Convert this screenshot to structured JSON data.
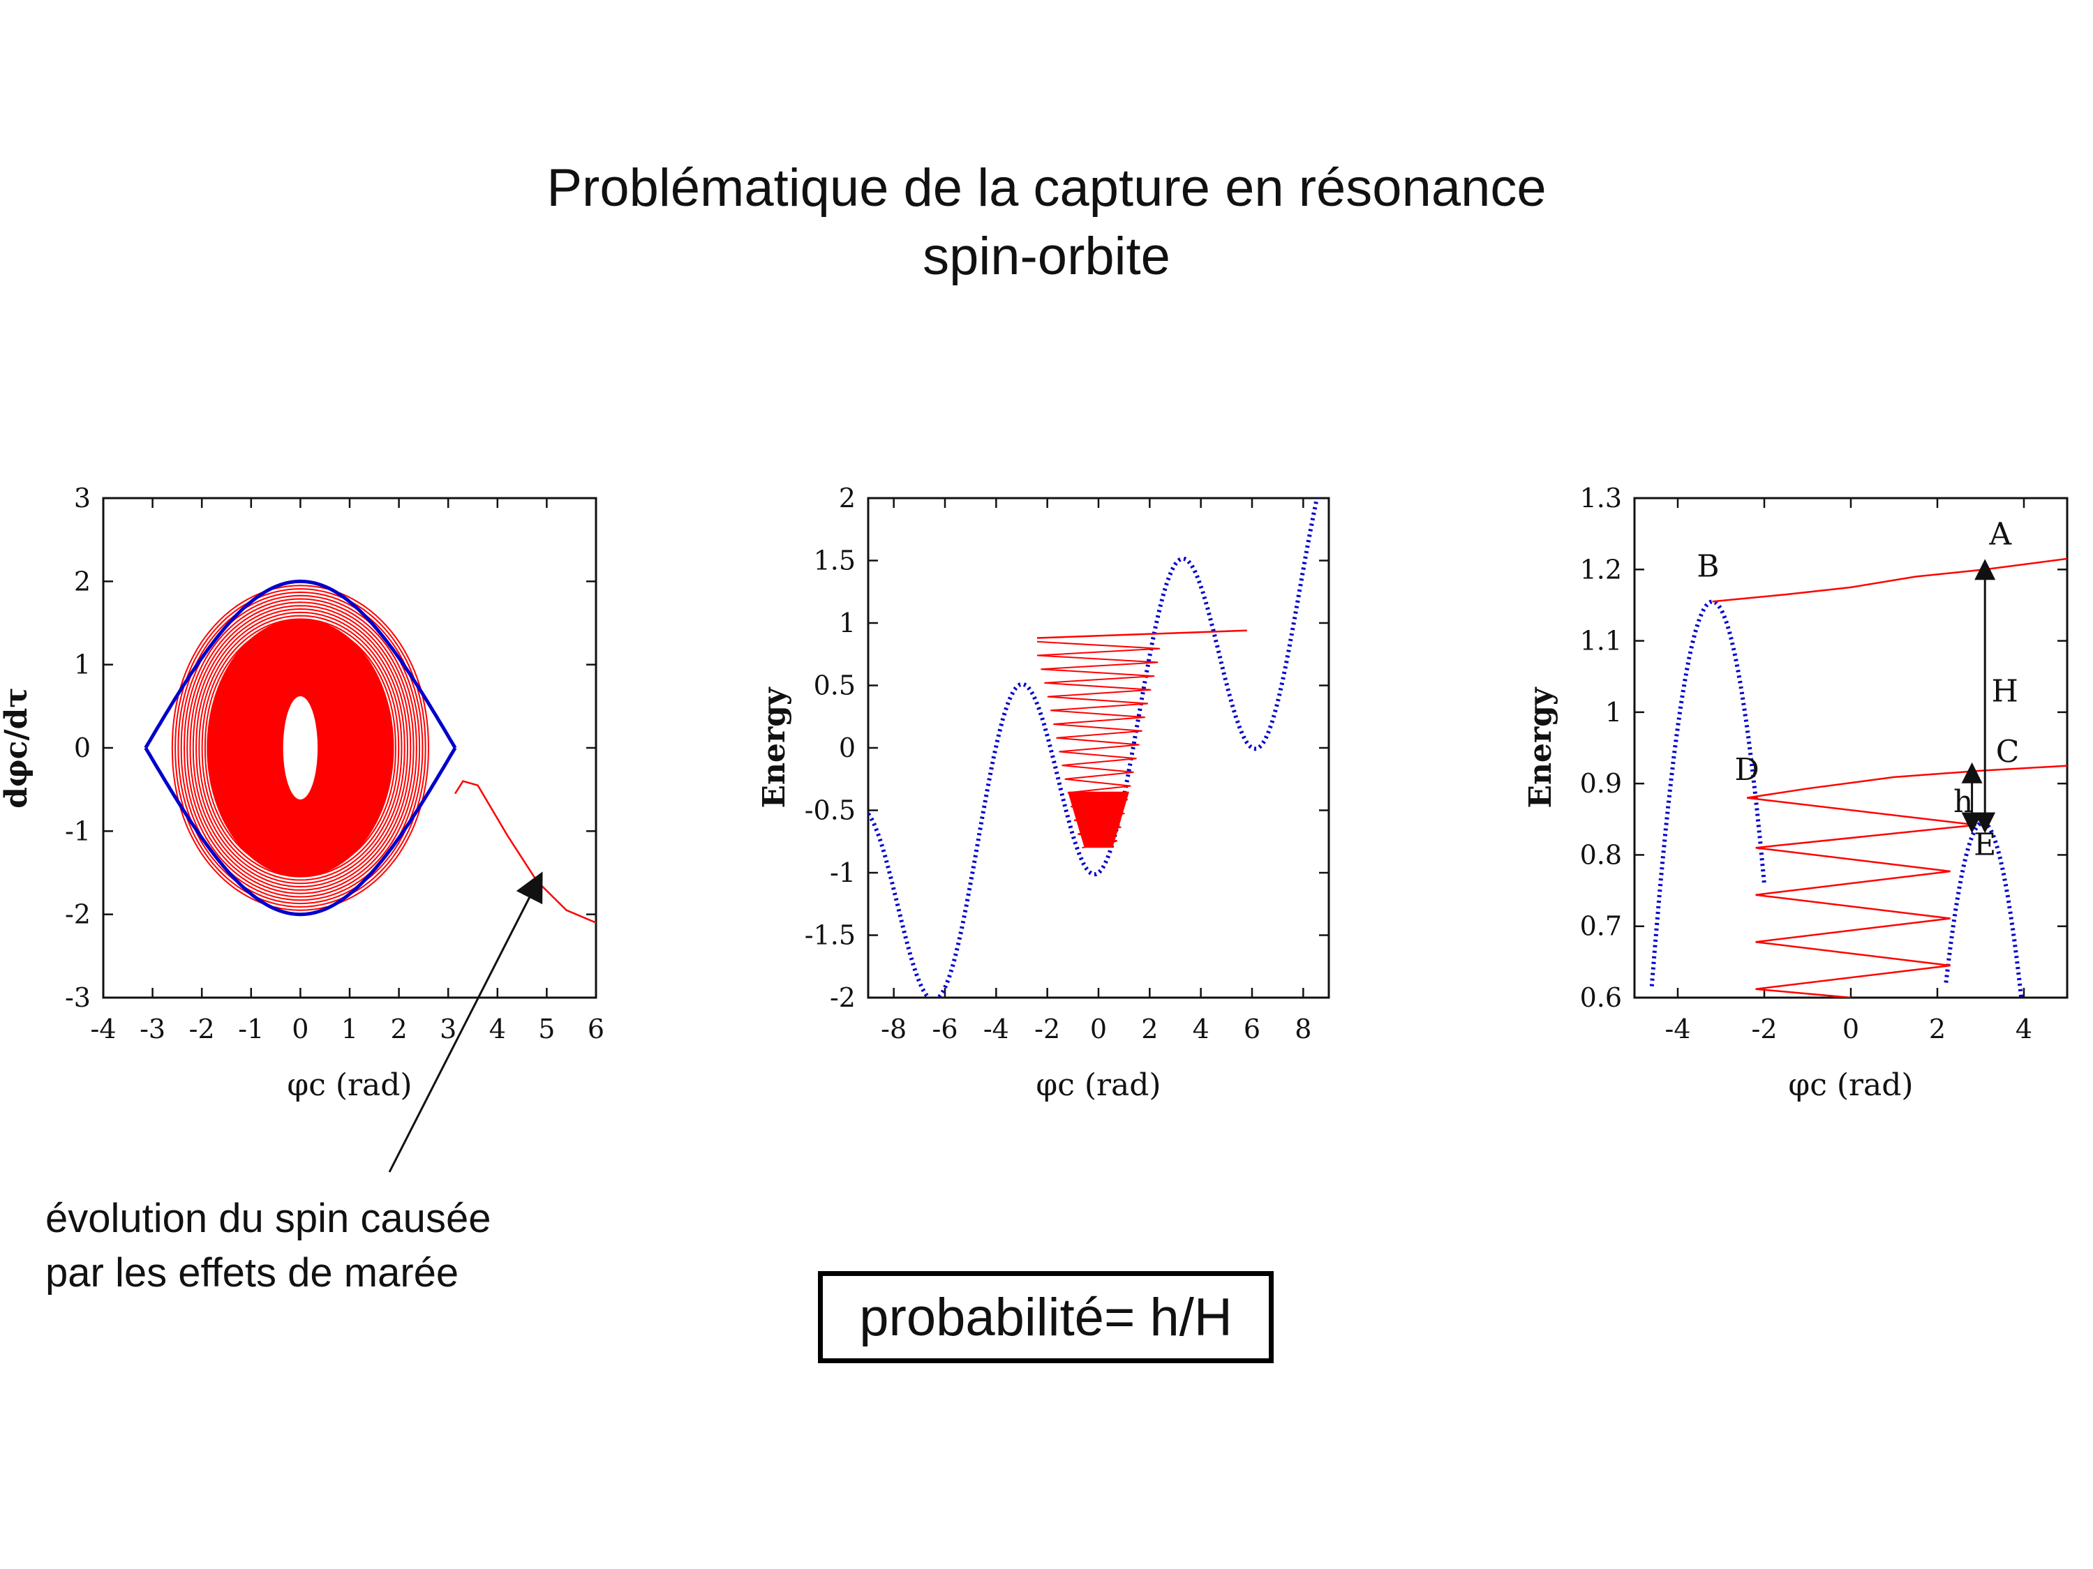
{
  "slide": {
    "title_line1": "Problématique de la capture en résonance",
    "title_line2": "spin-orbite",
    "caption_line1": "évolution du spin causée",
    "caption_line2": "par les effets de marée",
    "probability_label": "probabilité= h/H"
  },
  "colors": {
    "trajectory": "#ff0000",
    "separatrix": "#0000cc",
    "text": "#111111"
  },
  "chart_data": [
    {
      "type": "line",
      "xlabel": "φc (rad)",
      "ylabel": "dφc/dτ",
      "xlim": [
        -4,
        6
      ],
      "ylim": [
        -3,
        3
      ],
      "xticks": [
        -4,
        -3,
        -2,
        -1,
        0,
        1,
        2,
        3,
        4,
        5,
        6
      ],
      "yticks": [
        -3,
        -2,
        -1,
        0,
        1,
        2,
        3
      ],
      "series": [
        {
          "style": "separatrix",
          "amplitude": 2.0,
          "x_range": [
            -3.14,
            3.14
          ]
        },
        {
          "style": "trajectory",
          "inner_radius": [
            0.35,
            0.62
          ],
          "outer_amplitude": 1.95,
          "loops": 34
        },
        {
          "style": "escape",
          "points": [
            [
              3.14,
              -0.55
            ],
            [
              3.3,
              -0.4
            ],
            [
              3.6,
              -0.45
            ],
            [
              4.2,
              -1.05
            ],
            [
              4.8,
              -1.6
            ],
            [
              5.4,
              -1.95
            ],
            [
              6.0,
              -2.1
            ]
          ]
        }
      ]
    },
    {
      "type": "line",
      "xlabel": "φc (rad)",
      "ylabel": "Energy",
      "xlim": [
        -9,
        9
      ],
      "ylim": [
        -2,
        2
      ],
      "xticks": [
        -8,
        -6,
        -4,
        -2,
        0,
        2,
        4,
        6,
        8
      ],
      "yticks": [
        -2,
        -1.5,
        -1,
        -0.5,
        0,
        0.5,
        1,
        1.5,
        2
      ],
      "series": [
        {
          "style": "potential",
          "formula": "-cos(x) + 0.16*x",
          "x_range": [
            -9,
            9
          ]
        },
        {
          "style": "trajectory",
          "energy_top": 0.85,
          "energy_bottom": -0.8,
          "x_left": -2.4,
          "x_right": 2.4,
          "zigzags": 30,
          "exit_line": [
            [
              -2.4,
              0.88
            ],
            [
              5.8,
              0.94
            ]
          ]
        }
      ]
    },
    {
      "type": "line",
      "xlabel": "φc (rad)",
      "ylabel": "Energy",
      "xlim": [
        -5,
        5
      ],
      "ylim": [
        0.6,
        1.3
      ],
      "xticks": [
        -4,
        -2,
        0,
        2,
        4
      ],
      "yticks": [
        0.6,
        0.7,
        0.8,
        0.9,
        1,
        1.1,
        1.2,
        1.3
      ],
      "annotations": [
        "A",
        "B",
        "C",
        "D",
        "E",
        "H",
        "h"
      ],
      "series": [
        {
          "style": "potential-left",
          "peak": [
            -3.2,
            1.155
          ],
          "x_range": [
            -4.5,
            -2.1
          ]
        },
        {
          "style": "potential-right",
          "peak": [
            3.05,
            0.845
          ],
          "x_range": [
            2.35,
            3.85
          ]
        },
        {
          "style": "line-AB",
          "points": [
            [
              -3.2,
              1.155
            ],
            [
              -1.5,
              1.165
            ],
            [
              0,
              1.175
            ],
            [
              1.5,
              1.19
            ],
            [
              3.1,
              1.2
            ],
            [
              5,
              1.215
            ]
          ]
        },
        {
          "style": "line-CD",
          "points": [
            [
              -2.4,
              0.88
            ],
            [
              -1,
              0.893
            ],
            [
              1,
              0.909
            ],
            [
              3,
              0.918
            ],
            [
              5,
              0.925
            ]
          ]
        },
        {
          "style": "zigzag",
          "points": [
            [
              -2.4,
              0.88
            ],
            [
              2.9,
              0.842
            ],
            [
              -2.2,
              0.81
            ],
            [
              2.3,
              0.777
            ],
            [
              -2.2,
              0.744
            ],
            [
              2.3,
              0.711
            ],
            [
              -2.2,
              0.678
            ],
            [
              2.3,
              0.645
            ],
            [
              -2.2,
              0.612
            ],
            [
              0,
              0.6
            ]
          ]
        }
      ]
    }
  ]
}
